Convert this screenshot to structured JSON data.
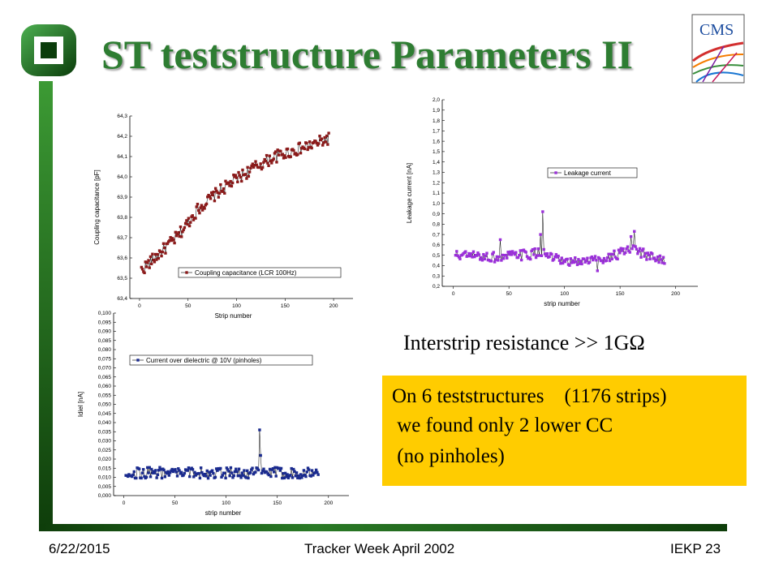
{
  "slide": {
    "title": "ST teststructure Parameters II",
    "logo_right_text": "CMS",
    "interstrip_text": "Interstrip resistance >> 1GΩ",
    "summary_lines": [
      "On 6 teststructures    (1176 strips)",
      " we found only 2 lower CC",
      " (no pinholes)"
    ],
    "footer": {
      "date": "6/22/2015",
      "center": "Tracker Week April 2002",
      "right": "IEKP   23"
    },
    "colors": {
      "title": "#2e7d32",
      "accent_bar": "#1f6b1a",
      "summary_box": "#ffcc00"
    }
  },
  "chart_data": [
    {
      "type": "scatter",
      "xlabel": "Strip number",
      "ylabel": "Coupling capacitance [pF]",
      "xlim": [
        -10,
        220
      ],
      "ylim": [
        63.4,
        64.3
      ],
      "xticks": [
        0,
        50,
        100,
        150,
        200
      ],
      "yticks": [
        "63,4",
        "63,5",
        "63,6",
        "63,7",
        "63,8",
        "63,9",
        "64,0",
        "64,1",
        "64,2",
        "64,3"
      ],
      "legend": "Coupling capacitance (LCR 100Hz)",
      "legend_position": "bottom-right",
      "color": "#8b1a1a",
      "trend": {
        "x": [
          2,
          20,
          40,
          60,
          80,
          100,
          120,
          140,
          160,
          180,
          195
        ],
        "y": [
          63.54,
          63.62,
          63.71,
          63.84,
          63.92,
          63.99,
          64.05,
          64.1,
          64.13,
          64.16,
          64.19
        ]
      },
      "noise": 0.03,
      "x_range": [
        2,
        195
      ],
      "n_points": 188
    },
    {
      "type": "scatter",
      "xlabel": "strip number",
      "ylabel": "Leakage current [nA]",
      "xlim": [
        -10,
        220
      ],
      "ylim": [
        0.2,
        2.0
      ],
      "xticks": [
        0,
        50,
        100,
        150,
        200
      ],
      "yticks": [
        "0,2",
        "0,3",
        "0,4",
        "0,5",
        "0,6",
        "0,7",
        "0,8",
        "0,9",
        "1,0",
        "1,1",
        "1,2",
        "1,3",
        "1,4",
        "1,5",
        "1,6",
        "1,7",
        "1,8",
        "1,9",
        "2,0"
      ],
      "legend": "Leakage current",
      "legend_position": "top-right",
      "color": "#9b30d9",
      "trend": {
        "x": [
          2,
          40,
          80,
          100,
          120,
          140,
          160,
          190
        ],
        "y": [
          0.5,
          0.48,
          0.52,
          0.42,
          0.45,
          0.48,
          0.55,
          0.45
        ]
      },
      "noise": 0.05,
      "spikes": [
        {
          "x": 80,
          "y": 0.92
        },
        {
          "x": 78,
          "y": 0.7
        },
        {
          "x": 163,
          "y": 0.73
        },
        {
          "x": 160,
          "y": 0.68
        },
        {
          "x": 42,
          "y": 0.65
        },
        {
          "x": 130,
          "y": 0.35
        }
      ],
      "x_range": [
        2,
        190
      ],
      "n_points": 188
    },
    {
      "type": "scatter",
      "xlabel": "strip number",
      "ylabel": "Idiel [nA]",
      "xlim": [
        -10,
        220
      ],
      "ylim": [
        0.0,
        0.1
      ],
      "xticks": [
        0,
        50,
        100,
        150,
        200
      ],
      "yticks": [
        "0,000",
        "0,005",
        "0,010",
        "0,015",
        "0,020",
        "0,025",
        "0,030",
        "0,035",
        "0,040",
        "0,045",
        "0,050",
        "0,055",
        "0,060",
        "0,065",
        "0,070",
        "0,075",
        "0,080",
        "0,085",
        "0,090",
        "0,095",
        "0,100"
      ],
      "legend": "Current over dielectric @ 10V (pinholes)",
      "legend_position": "top",
      "color": "#1a2b8f",
      "trend": {
        "x": [
          2,
          190
        ],
        "y": [
          0.0125,
          0.0125
        ]
      },
      "noise": 0.003,
      "spikes": [
        {
          "x": 133,
          "y": 0.036
        },
        {
          "x": 134,
          "y": 0.022
        }
      ],
      "x_range": [
        2,
        190
      ],
      "n_points": 188
    }
  ]
}
